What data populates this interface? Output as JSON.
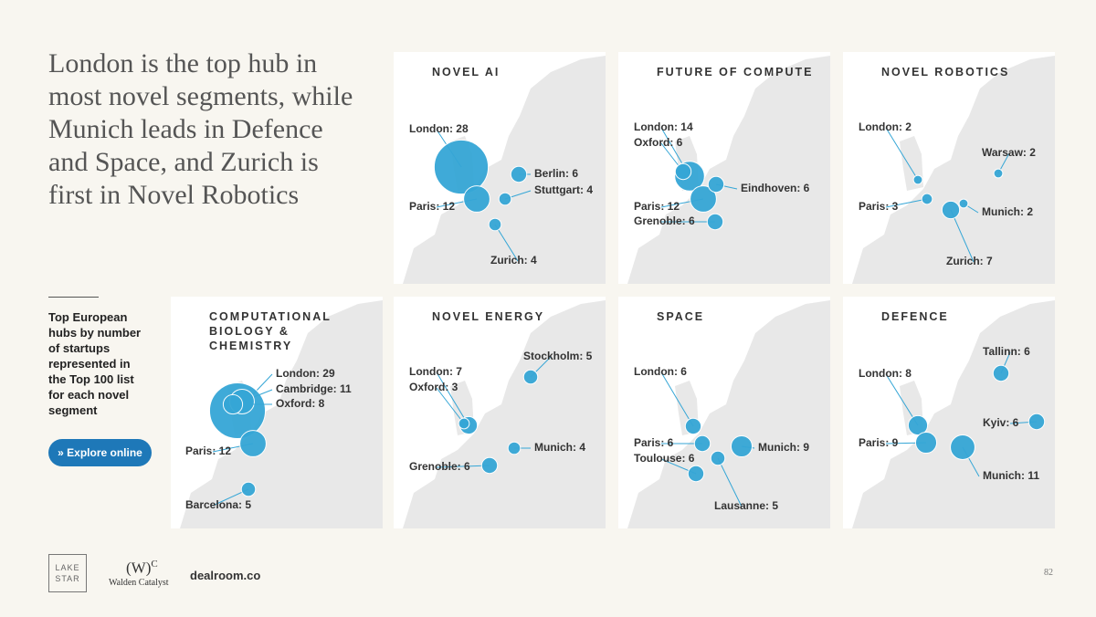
{
  "title": "London is the top hub in most novel segments, while Munich leads in Defence and Space, and Zurich is first in Novel Robotics",
  "sidebar": {
    "text": "Top European hubs by number of startups represented in the Top 100 list for each novel segment",
    "button": "» Explore online"
  },
  "footer": {
    "lakestar": "LAKE STAR",
    "walden_mark": "(W)",
    "walden_sup": "C",
    "walden": "Walden Catalyst",
    "dealroom": "dealroom.co",
    "page": "82"
  },
  "chart_data": [
    {
      "type": "bubble-map",
      "title": "NOVEL AI",
      "color": "#35a6d6",
      "values": [
        28,
        12,
        6,
        4,
        4
      ],
      "value_labels": [
        "London: 28",
        "Paris: 12",
        "Berlin: 6",
        "Stuttgart: 4",
        "Zurich: 4"
      ]
    },
    {
      "type": "bubble-map",
      "title": "FUTURE OF COMPUTE",
      "color": "#35a6d6",
      "values": [
        14,
        6,
        12,
        6,
        6
      ],
      "value_labels": [
        "London: 14",
        "Oxford: 6",
        "Paris: 12",
        "Eindhoven: 6",
        "Grenoble: 6"
      ]
    },
    {
      "type": "bubble-map",
      "title": "NOVEL ROBOTICS",
      "color": "#35a6d6",
      "values": [
        2,
        2,
        3,
        2,
        7
      ],
      "value_labels": [
        "London: 2",
        "Warsaw: 2",
        "Paris: 3",
        "Munich: 2",
        "Zurich: 7"
      ]
    },
    {
      "type": "bubble-map",
      "title": "COMPUTATIONAL BIOLOGY & CHEMISTRY",
      "color": "#35a6d6",
      "values": [
        29,
        11,
        8,
        12,
        5
      ],
      "value_labels": [
        "London: 29",
        "Cambridge: 11",
        "Oxford: 8",
        "Paris: 12",
        "Barcelona: 5"
      ]
    },
    {
      "type": "bubble-map",
      "title": "NOVEL ENERGY",
      "color": "#35a6d6",
      "values": [
        7,
        3,
        5,
        4,
        6
      ],
      "value_labels": [
        "London: 7",
        "Oxford: 3",
        "Stockholm: 5",
        "Munich: 4",
        "Grenoble: 6"
      ]
    },
    {
      "type": "bubble-map",
      "title": "SPACE",
      "color": "#35a6d6",
      "values": [
        6,
        6,
        6,
        9,
        5
      ],
      "value_labels": [
        "London: 6",
        "Paris: 6",
        "Toulouse: 6",
        "Munich: 9",
        "Lausanne: 5"
      ]
    },
    {
      "type": "bubble-map",
      "title": "DEFENCE",
      "color": "#35a6d6",
      "values": [
        8,
        9,
        6,
        6,
        11
      ],
      "value_labels": [
        "London: 8",
        "Paris: 9",
        "Tallinn: 6",
        "Kyiv: 6",
        "Munich: 11"
      ]
    }
  ]
}
